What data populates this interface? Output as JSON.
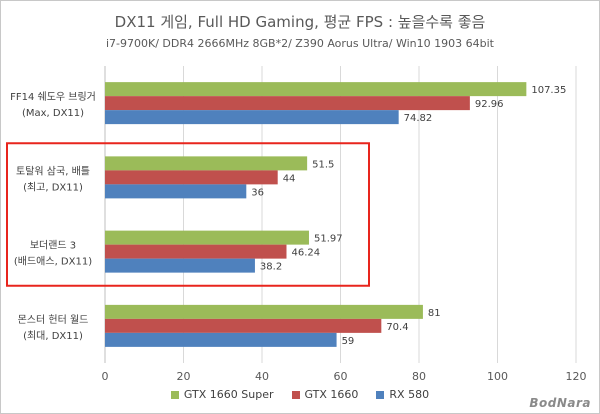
{
  "chart_data": {
    "type": "bar",
    "orientation": "horizontal",
    "title": "DX11 게임, Full HD Gaming, 평균 FPS : 높을수록 좋음",
    "subtitle": "i7-9700K/ DDR4 2666MHz 8GB*2/ Z390 Aorus Ultra/ Win10 1903 64bit",
    "categories": [
      [
        "FF14 쉐도우 브링거",
        "(Max, DX11)"
      ],
      [
        "토탈워 삼국, 배틀",
        "(최고, DX11)"
      ],
      [
        "보더랜드 3",
        "(배드애스, DX11)"
      ],
      [
        "몬스터 헌터 월드",
        "(최대, DX11)"
      ]
    ],
    "series": [
      {
        "name": "GTX 1660 Super",
        "color": "#9bbb59",
        "values": [
          107.35,
          51.5,
          51.97,
          81
        ]
      },
      {
        "name": "GTX 1660",
        "color": "#c0504d",
        "values": [
          92.96,
          44,
          46.24,
          70.4
        ]
      },
      {
        "name": "RX 580",
        "color": "#4f81bd",
        "values": [
          74.82,
          36,
          38.2,
          59
        ]
      }
    ],
    "value_labels": [
      [
        "107.35",
        "51.5",
        "51.97",
        "81"
      ],
      [
        "92.96",
        "44",
        "46.24",
        "70.4"
      ],
      [
        "74.82",
        "36",
        "38.2",
        "59"
      ]
    ],
    "xlim": [
      0,
      120
    ],
    "xticks": [
      0,
      20,
      40,
      60,
      80,
      100,
      120
    ],
    "grid": true,
    "legend_position": "bottom",
    "highlight": {
      "categories": [
        1,
        2
      ],
      "color": "#e8251d"
    }
  },
  "watermark": "BodNara"
}
